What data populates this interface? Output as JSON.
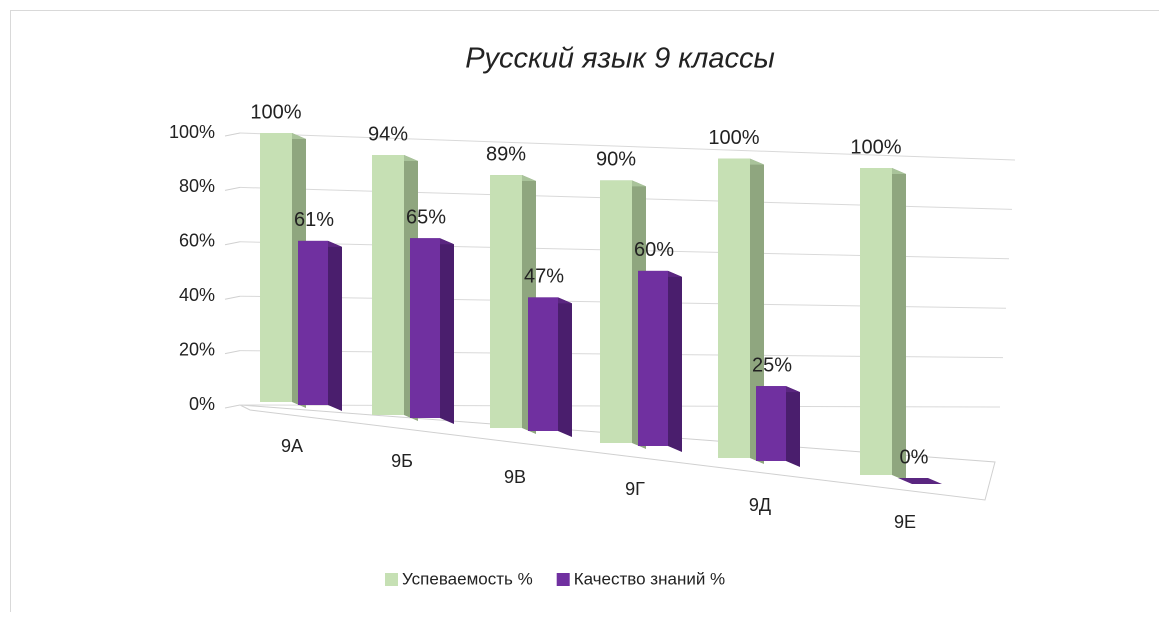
{
  "chart_data": {
    "type": "bar3d",
    "title": "Русский язык 9 классы",
    "categories": [
      "9А",
      "9Б",
      "9В",
      "9Г",
      "9Д",
      "9Е"
    ],
    "series": [
      {
        "name": "Успеваемость %",
        "color": "#c6e0b4",
        "values": [
          100,
          94,
          89,
          90,
          100,
          100
        ],
        "value_labels": [
          "100%",
          "94%",
          "89%",
          "90%",
          "100%",
          "100%"
        ]
      },
      {
        "name": "Качество знаний %",
        "color": "#7030a0",
        "values": [
          61,
          65,
          47,
          60,
          25,
          0
        ],
        "value_labels": [
          "61%",
          "65%",
          "47%",
          "60%",
          "25%",
          "0%"
        ]
      }
    ],
    "ylim": [
      0,
      100
    ],
    "yticks": [
      {
        "value": 0,
        "label": "0%"
      },
      {
        "value": 20,
        "label": "20%"
      },
      {
        "value": 40,
        "label": "40%"
      },
      {
        "value": 60,
        "label": "60%"
      },
      {
        "value": 80,
        "label": "80%"
      },
      {
        "value": 100,
        "label": "100%"
      }
    ],
    "grid": true,
    "legend": "bottom"
  }
}
